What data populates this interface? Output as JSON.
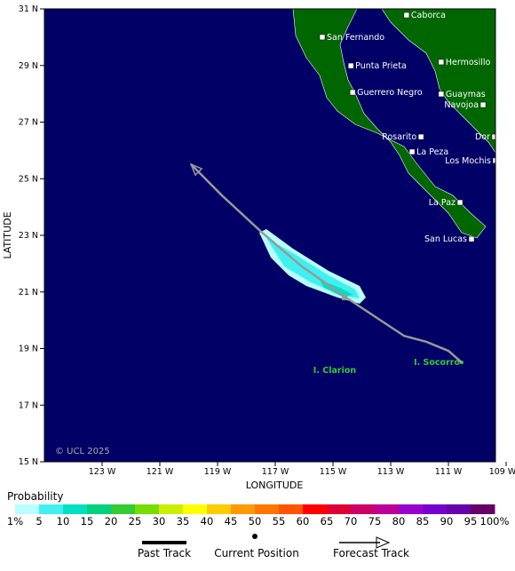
{
  "map": {
    "xlabel": "LONGITUDE",
    "ylabel": "LATITUDE",
    "xlim": [
      -125,
      -109.37
    ],
    "ylim": [
      15,
      31
    ],
    "xticks": [
      {
        "value": -123,
        "label": "123 W"
      },
      {
        "value": -121,
        "label": "121 W"
      },
      {
        "value": -119,
        "label": "119 W"
      },
      {
        "value": -117,
        "label": "117 W"
      },
      {
        "value": -115,
        "label": "115 W"
      },
      {
        "value": -113,
        "label": "113 W"
      },
      {
        "value": -111,
        "label": "111 W"
      },
      {
        "value": -109,
        "label": "109 W"
      }
    ],
    "yticks": [
      {
        "value": 15,
        "label": "15 N"
      },
      {
        "value": 17,
        "label": "17 N"
      },
      {
        "value": 19,
        "label": "19 N"
      },
      {
        "value": 21,
        "label": "21 N"
      },
      {
        "value": 23,
        "label": "23 N"
      },
      {
        "value": 25,
        "label": "25 N"
      },
      {
        "value": 27,
        "label": "27 N"
      },
      {
        "value": 29,
        "label": "29 N"
      },
      {
        "value": 31,
        "label": "31 N"
      }
    ],
    "places": [
      {
        "name": "Caborca",
        "lon": -112.45,
        "lat": 30.78,
        "anchor": "start"
      },
      {
        "name": "San Fernando",
        "lon": -115.37,
        "lat": 30.0,
        "anchor": "start"
      },
      {
        "name": "Punta Prieta",
        "lon": -114.38,
        "lat": 28.99,
        "anchor": "start"
      },
      {
        "name": "Hermosillo",
        "lon": -111.25,
        "lat": 29.12,
        "anchor": "start"
      },
      {
        "name": "Guerrero Negro",
        "lon": -114.32,
        "lat": 28.05,
        "anchor": "start"
      },
      {
        "name": "Guaymas",
        "lon": -111.25,
        "lat": 27.99,
        "anchor": "start"
      },
      {
        "name": "Navojoa",
        "lon": -109.8,
        "lat": 27.61,
        "anchor": "end"
      },
      {
        "name": "Rosarito",
        "lon": -111.95,
        "lat": 26.48,
        "anchor": "end"
      },
      {
        "name": "Dor",
        "lon": -109.4,
        "lat": 26.48,
        "anchor": "end"
      },
      {
        "name": "La Peza",
        "lon": -112.26,
        "lat": 25.95,
        "anchor": "start"
      },
      {
        "name": "Los Mochis",
        "lon": -109.37,
        "lat": 25.64,
        "anchor": "end"
      },
      {
        "name": "La Paz",
        "lon": -110.6,
        "lat": 24.16,
        "anchor": "end"
      },
      {
        "name": "San Lucas",
        "lon": -110.2,
        "lat": 22.87,
        "anchor": "end"
      }
    ],
    "islands": [
      {
        "name": "I. Clarion",
        "lon": -114.94,
        "lat": 18.23,
        "anchor": "middle",
        "dot": false
      },
      {
        "name": "I. Socorro",
        "lon": -110.54,
        "lat": 18.51,
        "anchor": "end",
        "dot": true
      }
    ],
    "track": [
      [
        -110.54,
        18.51
      ],
      [
        -111.0,
        18.92
      ],
      [
        -111.77,
        19.24
      ],
      [
        -112.54,
        19.45
      ],
      [
        -114.54,
        20.8
      ],
      [
        -116.08,
        21.9
      ],
      [
        -117.46,
        23.1
      ],
      [
        -118.85,
        24.41
      ],
      [
        -119.92,
        25.51
      ]
    ],
    "current_position": {
      "lon": -114.6,
      "lat": 20.8
    },
    "copyright": "© UCL 2025"
  },
  "legend": {
    "title": "Probability",
    "labels": [
      "1%",
      "5",
      "10",
      "15",
      "20",
      "25",
      "30",
      "35",
      "40",
      "45",
      "50",
      "55",
      "60",
      "65",
      "70",
      "75",
      "80",
      "85",
      "90",
      "95",
      "100%"
    ],
    "colors": [
      "#b8ffff",
      "#40f0f0",
      "#00e0c0",
      "#00d080",
      "#33cc33",
      "#77dd00",
      "#ccee00",
      "#ffff00",
      "#ffcc00",
      "#ff9900",
      "#ff7700",
      "#ff5500",
      "#ff0000",
      "#dd0033",
      "#cc0066",
      "#bb0099",
      "#9900cc",
      "#7700cc",
      "#6600aa",
      "#660066"
    ],
    "past_track": "Past Track",
    "current_position": "Current Position",
    "forecast_track": "Forecast Track"
  }
}
